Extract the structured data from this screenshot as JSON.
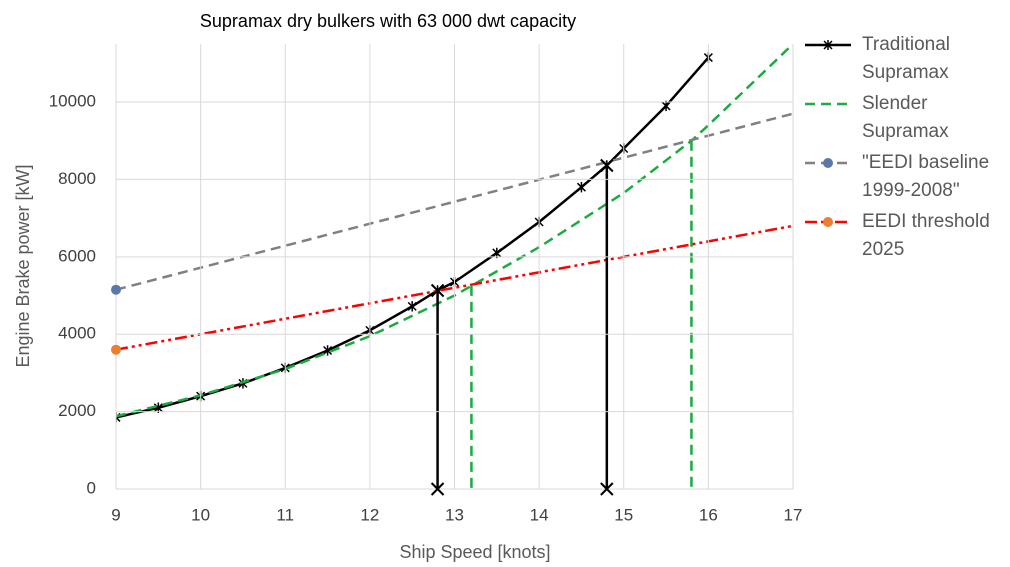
{
  "chart_data": {
    "type": "line",
    "title": "Supramax dry bulkers with 63 000 dwt capacity",
    "x_label": "Ship Speed  [knots]",
    "y_label": "Engine Brake power [kW]",
    "xlim": [
      9,
      17
    ],
    "xticks": [
      9,
      10,
      11,
      12,
      13,
      14,
      15,
      16,
      17
    ],
    "ylim": [
      0,
      11500
    ],
    "yticks": [
      0,
      2000,
      4000,
      6000,
      8000,
      10000
    ],
    "grid": true,
    "legend": "right",
    "series": [
      {
        "name": "Traditional Supramax",
        "color": "#000000",
        "dash": "solid",
        "marker": "star",
        "x": [
          9,
          9.5,
          10,
          10.5,
          11,
          11.5,
          12,
          12.5,
          12.8,
          13,
          13.5,
          14,
          14.5,
          14.8,
          15,
          15.5,
          16
        ],
        "values": [
          1850,
          2100,
          2400,
          2730,
          3130,
          3580,
          4100,
          4720,
          5130,
          5350,
          6100,
          6900,
          7800,
          8360,
          8800,
          9900,
          11150
        ]
      },
      {
        "name": "Slender Supramax",
        "color": "#1aab40",
        "dash": "dashed",
        "marker": "none",
        "x": [
          9,
          10,
          11,
          12,
          13,
          13.2,
          14,
          15,
          15.8,
          16,
          17
        ],
        "values": [
          1880,
          2420,
          3100,
          3950,
          5000,
          5250,
          6250,
          7650,
          9000,
          9400,
          11500
        ]
      },
      {
        "name": "\"EEDI baseline 1999-2008\"",
        "color": "#808080",
        "marker_color": "#5b79a8",
        "dash": "dashed",
        "marker": "circle",
        "x": [
          9,
          17
        ],
        "values": [
          5150,
          9700
        ]
      },
      {
        "name": "EEDI threshold 2025",
        "color": "#ff0000",
        "marker_color": "#ed7d31",
        "dash": "dashdotdot",
        "marker": "circle",
        "x": [
          9,
          17
        ],
        "values": [
          3600,
          6800
        ]
      }
    ],
    "drop_lines": [
      {
        "color": "#000000",
        "dash": "solid",
        "marker": "cross",
        "x": [
          12.8,
          12.8
        ],
        "values": [
          5130,
          0
        ]
      },
      {
        "color": "#000000",
        "dash": "solid",
        "marker": "cross",
        "x": [
          14.8,
          14.8
        ],
        "values": [
          8360,
          0
        ]
      },
      {
        "color": "#1aab40",
        "dash": "dashed",
        "marker": "none",
        "x": [
          13.2,
          13.2
        ],
        "values": [
          5250,
          0
        ]
      },
      {
        "color": "#1aab40",
        "dash": "dashed",
        "marker": "none",
        "x": [
          15.8,
          15.8
        ],
        "values": [
          9000,
          0
        ]
      }
    ]
  }
}
